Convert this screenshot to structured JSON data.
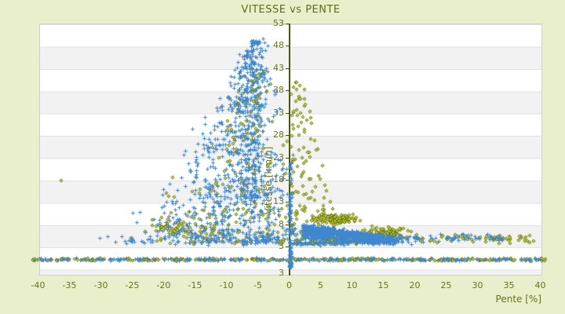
{
  "chart_data": {
    "type": "scatter",
    "title": "VITESSE vs PENTE",
    "xlabel": "Pente [%]",
    "ylabel": "Vitesse [km/h]",
    "x_ticks": [
      -40,
      -35,
      -30,
      -25,
      -20,
      -15,
      -10,
      -5,
      0,
      5,
      10,
      15,
      20,
      25,
      30,
      35,
      40
    ],
    "y_ticks": [
      53,
      48,
      43,
      38,
      33,
      28,
      23,
      18,
      13,
      8,
      3
    ],
    "y_axis_bottom_label": "3",
    "xlim": [
      -40.5,
      40.5
    ],
    "ylim": [
      -3.5,
      53
    ],
    "grid": "horizontal-bands",
    "legend": "none",
    "colors": {
      "background": "#e9efca",
      "plot_white": "#ffffff",
      "plot_stripe": "#f2f2f2",
      "band_line": "#e2e2e2",
      "plot_border": "#d0d0d0",
      "text": "#68731f",
      "title_text": "#5e6b1f",
      "zero_axis": "#485608",
      "blue_marker": "#3f87cf",
      "olive_marker": "#6e7a00",
      "olive_center": "#c6d152"
    },
    "series": [
      {
        "name": "serie-olive",
        "marker": "diamond",
        "color": "#6e7a00",
        "center": "#c6d152"
      },
      {
        "name": "serie-bleue",
        "marker": "plus",
        "color": "#3f87cf"
      }
    ],
    "seed": 20240613,
    "clusters": [
      {
        "series": 0,
        "kind": "plume",
        "n": 240,
        "sMin": 4,
        "sMax": 43,
        "tPow": 2.0,
        "xcBase": -10.5,
        "xcSlope": 5.5,
        "hwBase": 19,
        "hwPow": 1.35,
        "hwMin": 2.5,
        "xMin": -36,
        "xMax": 1.5
      },
      {
        "series": 0,
        "kind": "gauss",
        "n": 60,
        "mx": -18,
        "my": 7,
        "sx": 8,
        "sy": 3.5
      },
      {
        "series": 0,
        "kind": "fan",
        "n": 150,
        "y0": 3.5,
        "y1": 40,
        "pow": 2.3,
        "x0": 0.3,
        "w0": 8,
        "w1": 2
      },
      {
        "series": 0,
        "kind": "gauss",
        "n": 110,
        "mx": 7.5,
        "my": 9.1,
        "sx": 6,
        "sy": 1.6
      },
      {
        "series": 0,
        "kind": "gauss",
        "n": 110,
        "mx": 8.5,
        "my": 4.3,
        "sx": 6.5,
        "sy": 1.0
      },
      {
        "series": 0,
        "kind": "gauss",
        "n": 90,
        "mx": 15.5,
        "my": 6.2,
        "sx": 5,
        "sy": 1.6
      },
      {
        "series": 0,
        "kind": "row",
        "n": 70,
        "x0": 17,
        "x1": 39,
        "my": 4.8,
        "sy": 1.4
      },
      {
        "series": 0,
        "kind": "row",
        "n": 310,
        "x0": -41,
        "x1": 41,
        "my": 0.1,
        "sy": 0.45
      },
      {
        "series": 0,
        "kind": "points",
        "pts": [
          [
            -36.3,
            17.8
          ]
        ]
      },
      {
        "series": 1,
        "kind": "plume",
        "n": 850,
        "sMin": 4,
        "sMax": 49.5,
        "tPow": 1.9,
        "xcBase": -10.5,
        "xcSlope": 5.3,
        "hwBase": 20,
        "hwPow": 1.35,
        "hwMin": 2.2,
        "xMin": -37,
        "xMax": 1.3
      },
      {
        "series": 1,
        "kind": "column",
        "n": 220,
        "mx": -6.3,
        "sx": 3.5,
        "y0": 14,
        "y1": 47,
        "pow": 1.25
      },
      {
        "series": 1,
        "kind": "teardrop",
        "n": 700,
        "x0": 2.2,
        "len": 12.8,
        "tPow": 1.65,
        "y0": 6.7,
        "slope": -0.09,
        "h0": 2.0,
        "h1": 0.55
      },
      {
        "series": 1,
        "kind": "gauss",
        "n": 260,
        "mx": 5.2,
        "my": 6.1,
        "sx": 2.6,
        "sy": 1.9
      },
      {
        "series": 1,
        "kind": "column",
        "n": 140,
        "mx": 0.15,
        "sx": 0.3,
        "y0": -1.5,
        "y1": 23,
        "pow": 2.5
      },
      {
        "series": 1,
        "kind": "row",
        "n": 250,
        "x0": -40.5,
        "x1": 40.5,
        "my": 0.2,
        "sy": 0.45
      },
      {
        "series": 1,
        "kind": "gauss",
        "n": 150,
        "mx": 14,
        "my": 4.8,
        "sx": 9,
        "sy": 1.5
      },
      {
        "series": 1,
        "kind": "row",
        "n": 150,
        "x0": 1,
        "x1": 17,
        "my": 4.0,
        "sy": 0.9
      },
      {
        "series": 1,
        "kind": "row",
        "n": 50,
        "x0": 20,
        "x1": 34,
        "my": 5.0,
        "sy": 1.2
      }
    ]
  }
}
